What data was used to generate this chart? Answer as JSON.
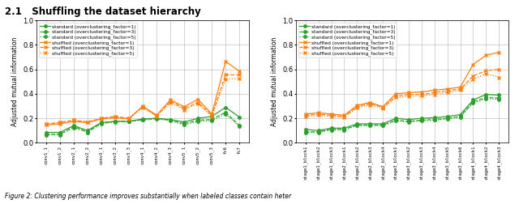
{
  "left_xtick_labels": [
    "conv1_1",
    "conv1_2",
    "conv2_1",
    "conv2_2",
    "conv3_1",
    "conv3_2",
    "conv3_3",
    "conv4_1",
    "conv4_2",
    "conv4_3",
    "conv5_1",
    "conv5_2",
    "conv5_3",
    "fc6",
    "fc7"
  ],
  "right_xtick_labels": [
    "stage1_block1",
    "stage1_block2",
    "stage1_block3",
    "stage2_block1",
    "stage2_block2",
    "stage2_block3",
    "stage2_block4",
    "stage3_block1",
    "stage3_block2",
    "stage3_block3",
    "stage3_block4",
    "stage3_block5",
    "stage3_block6",
    "stage4_block1",
    "stage4_block2",
    "stage4_block3"
  ],
  "ylabel": "Adjusted mutual information",
  "ylim": [
    0.0,
    1.0
  ],
  "yticks": [
    0.0,
    0.2,
    0.4,
    0.6,
    0.8,
    1.0
  ],
  "color_standard": "#2ca02c",
  "color_shuffled": "#ff7f0e",
  "left_standard_f1": [
    0.085,
    0.085,
    0.14,
    0.1,
    0.165,
    0.175,
    0.175,
    0.195,
    0.2,
    0.19,
    0.17,
    0.2,
    0.215,
    0.29,
    0.21
  ],
  "left_standard_f3": [
    0.07,
    0.07,
    0.13,
    0.09,
    0.16,
    0.175,
    0.175,
    0.19,
    0.2,
    0.185,
    0.155,
    0.185,
    0.19,
    0.25,
    0.14
  ],
  "left_standard_f5": [
    0.065,
    0.065,
    0.125,
    0.085,
    0.155,
    0.17,
    0.175,
    0.185,
    0.195,
    0.18,
    0.145,
    0.175,
    0.18,
    0.235,
    0.135
  ],
  "left_shuffled_f1": [
    0.145,
    0.155,
    0.175,
    0.165,
    0.195,
    0.205,
    0.195,
    0.3,
    0.225,
    0.35,
    0.295,
    0.355,
    0.235,
    0.665,
    0.585
  ],
  "left_shuffled_f3": [
    0.155,
    0.165,
    0.185,
    0.17,
    0.2,
    0.215,
    0.2,
    0.295,
    0.22,
    0.34,
    0.28,
    0.33,
    0.225,
    0.555,
    0.555
  ],
  "left_shuffled_f5": [
    0.155,
    0.165,
    0.185,
    0.17,
    0.2,
    0.215,
    0.2,
    0.29,
    0.215,
    0.33,
    0.27,
    0.32,
    0.215,
    0.52,
    0.525
  ],
  "right_standard_f1": [
    0.11,
    0.1,
    0.12,
    0.12,
    0.155,
    0.155,
    0.155,
    0.2,
    0.19,
    0.2,
    0.205,
    0.215,
    0.23,
    0.35,
    0.395,
    0.39
  ],
  "right_standard_f3": [
    0.09,
    0.09,
    0.11,
    0.11,
    0.145,
    0.145,
    0.145,
    0.185,
    0.175,
    0.185,
    0.19,
    0.2,
    0.215,
    0.335,
    0.37,
    0.365
  ],
  "right_standard_f5": [
    0.085,
    0.085,
    0.105,
    0.105,
    0.14,
    0.14,
    0.14,
    0.18,
    0.17,
    0.18,
    0.185,
    0.195,
    0.21,
    0.325,
    0.36,
    0.355
  ],
  "right_shuffled_f1": [
    0.235,
    0.245,
    0.235,
    0.225,
    0.305,
    0.33,
    0.295,
    0.4,
    0.41,
    0.415,
    0.43,
    0.44,
    0.455,
    0.64,
    0.715,
    0.74
  ],
  "right_shuffled_f3": [
    0.225,
    0.235,
    0.225,
    0.215,
    0.295,
    0.32,
    0.29,
    0.38,
    0.395,
    0.395,
    0.41,
    0.425,
    0.44,
    0.545,
    0.59,
    0.6
  ],
  "right_shuffled_f5": [
    0.215,
    0.225,
    0.215,
    0.21,
    0.285,
    0.31,
    0.28,
    0.37,
    0.38,
    0.385,
    0.395,
    0.41,
    0.43,
    0.52,
    0.565,
    0.535
  ],
  "legend_entries": [
    "standard (overclustering_factor=1)",
    "standard (overclustering_factor=3)",
    "standard (overclustering_factor=5)",
    "shuffled (overclustering_factor=1)",
    "shuffled (overclustering_factor=3)",
    "shuffled (overclustering_factor=5)"
  ],
  "title": "2.1   Shuffling the dataset hierarchy",
  "caption": "Figure 2: Clustering performance improves substantially when labeled classes contain heter",
  "figsize": [
    6.4,
    2.52
  ],
  "dpi": 100,
  "bg_color": "#f0f0f0"
}
